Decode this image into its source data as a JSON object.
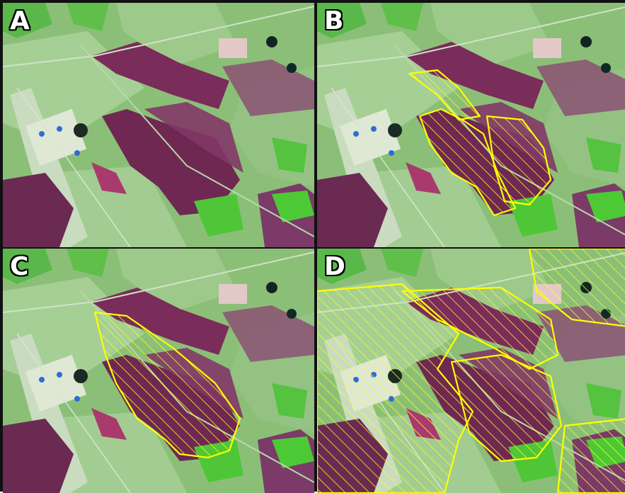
{
  "figure": {
    "panels": [
      {
        "label": "A"
      },
      {
        "label": "B"
      },
      {
        "label": "C"
      },
      {
        "label": "D"
      }
    ]
  },
  "colors": {
    "outline": "#ffff00",
    "burn": "#7a2c5a",
    "vegetation": "#8bbf78"
  }
}
